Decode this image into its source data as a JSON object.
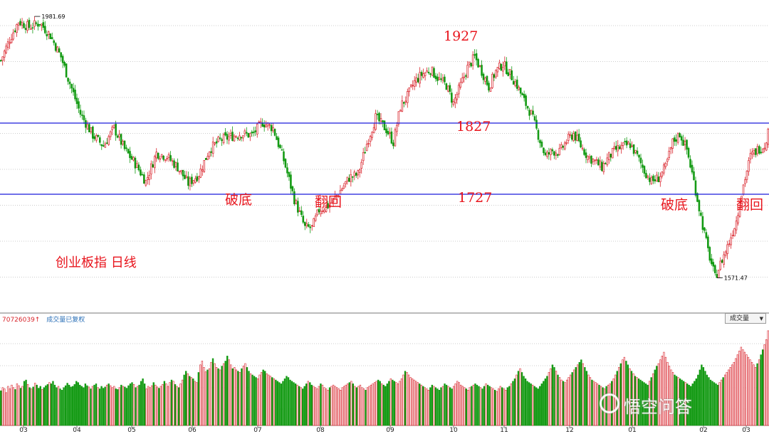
{
  "chart_data": {
    "type": "candlestick",
    "subtitle": "创业板指 日线",
    "x_ticks": [
      "03",
      "04",
      "05",
      "06",
      "07",
      "08",
      "09",
      "10",
      "11",
      "12",
      "01",
      "02",
      "03"
    ],
    "price_ylim": [
      1560,
      2000
    ],
    "high_label": "1981.69",
    "low_label": "1571.47",
    "levels": [
      {
        "value": 1827,
        "label": "1827",
        "color": "#1a1adb"
      },
      {
        "value": 1727,
        "label": "1727",
        "color": "#1a1adb"
      }
    ],
    "peak_label": "1927",
    "annotations": [
      "破底",
      "翻回",
      "破底",
      "翻回"
    ],
    "up_color": "#d9232b",
    "down_color": "#139a13",
    "anchors": [
      [
        0,
        1915
      ],
      [
        5,
        1945
      ],
      [
        10,
        1970
      ],
      [
        16,
        1962
      ],
      [
        22,
        1968
      ],
      [
        28,
        1950
      ],
      [
        34,
        1920
      ],
      [
        38,
        1890
      ],
      [
        45,
        1840
      ],
      [
        52,
        1810
      ],
      [
        58,
        1795
      ],
      [
        64,
        1820
      ],
      [
        70,
        1790
      ],
      [
        76,
        1770
      ],
      [
        82,
        1745
      ],
      [
        88,
        1785
      ],
      [
        94,
        1780
      ],
      [
        100,
        1765
      ],
      [
        106,
        1742
      ],
      [
        112,
        1755
      ],
      [
        118,
        1790
      ],
      [
        124,
        1803
      ],
      [
        130,
        1808
      ],
      [
        136,
        1812
      ],
      [
        142,
        1810
      ],
      [
        148,
        1828
      ],
      [
        154,
        1820
      ],
      [
        160,
        1775
      ],
      [
        166,
        1720
      ],
      [
        172,
        1680
      ],
      [
        176,
        1680
      ],
      [
        180,
        1705
      ],
      [
        186,
        1712
      ],
      [
        192,
        1732
      ],
      [
        197,
        1750
      ],
      [
        202,
        1755
      ],
      [
        207,
        1798
      ],
      [
        212,
        1835
      ],
      [
        218,
        1818
      ],
      [
        222,
        1800
      ],
      [
        226,
        1850
      ],
      [
        230,
        1865
      ],
      [
        234,
        1885
      ],
      [
        238,
        1895
      ],
      [
        243,
        1902
      ],
      [
        248,
        1888
      ],
      [
        252,
        1880
      ],
      [
        256,
        1855
      ],
      [
        260,
        1880
      ],
      [
        264,
        1905
      ],
      [
        268,
        1920
      ],
      [
        272,
        1900
      ],
      [
        276,
        1878
      ],
      [
        280,
        1900
      ],
      [
        284,
        1910
      ],
      [
        288,
        1896
      ],
      [
        292,
        1880
      ],
      [
        296,
        1858
      ],
      [
        300,
        1840
      ],
      [
        304,
        1810
      ],
      [
        308,
        1780
      ],
      [
        312,
        1788
      ],
      [
        316,
        1786
      ],
      [
        320,
        1802
      ],
      [
        324,
        1812
      ],
      [
        328,
        1795
      ],
      [
        332,
        1780
      ],
      [
        336,
        1773
      ],
      [
        340,
        1765
      ],
      [
        344,
        1780
      ],
      [
        348,
        1790
      ],
      [
        352,
        1794
      ],
      [
        356,
        1797
      ],
      [
        360,
        1780
      ],
      [
        364,
        1760
      ],
      [
        368,
        1745
      ],
      [
        372,
        1750
      ],
      [
        376,
        1765
      ],
      [
        380,
        1800
      ],
      [
        384,
        1812
      ],
      [
        388,
        1790
      ],
      [
        392,
        1745
      ],
      [
        396,
        1695
      ],
      [
        400,
        1648
      ],
      [
        404,
        1610
      ],
      [
        408,
        1635
      ],
      [
        412,
        1660
      ],
      [
        416,
        1690
      ],
      [
        420,
        1740
      ],
      [
        424,
        1780
      ],
      [
        428,
        1790
      ],
      [
        432,
        1796
      ],
      [
        434,
        1815
      ]
    ],
    "volume_ylim": [
      0,
      160
    ],
    "volume_values": [
      55,
      60,
      58,
      52,
      62,
      58,
      64,
      60,
      57,
      66,
      63,
      59,
      62,
      70,
      72,
      65,
      60,
      58,
      61,
      67,
      64,
      59,
      62,
      57,
      60,
      63,
      65,
      68,
      66,
      70,
      64,
      60,
      62,
      58,
      56,
      60,
      63,
      67,
      64,
      61,
      62,
      65,
      70,
      68,
      64,
      62,
      60,
      66,
      63,
      61,
      58,
      62,
      64,
      66,
      60,
      58,
      62,
      59,
      61,
      64,
      66,
      63,
      60,
      62,
      58,
      57,
      60,
      64,
      62,
      61,
      59,
      63,
      66,
      68,
      65,
      60,
      62,
      64,
      70,
      74,
      66,
      58,
      62,
      60,
      63,
      68,
      64,
      61,
      59,
      62,
      65,
      70,
      66,
      62,
      68,
      72,
      70,
      65,
      62,
      60,
      66,
      72,
      80,
      86,
      82,
      78,
      76,
      74,
      70,
      68,
      84,
      96,
      102,
      92,
      85,
      88,
      90,
      100,
      106,
      98,
      92,
      90,
      88,
      94,
      98,
      102,
      110,
      104,
      96,
      90,
      92,
      88,
      86,
      84,
      90,
      94,
      98,
      92,
      86,
      82,
      80,
      78,
      76,
      74,
      80,
      84,
      88,
      86,
      82,
      80,
      78,
      76,
      74,
      72,
      70,
      68,
      66,
      70,
      74,
      78,
      76,
      72,
      70,
      68,
      66,
      64,
      62,
      60,
      58,
      62,
      66,
      70,
      68,
      64,
      62,
      60,
      58,
      62,
      66,
      64,
      60,
      58,
      56,
      60,
      62,
      64,
      62,
      60,
      58,
      56,
      60,
      62,
      64,
      66,
      68,
      70,
      66,
      62,
      60,
      62,
      64,
      60,
      58,
      56,
      60,
      62,
      64,
      66,
      68,
      70,
      72,
      70,
      66,
      64,
      62,
      66,
      70,
      74,
      72,
      70,
      68,
      66,
      70,
      74,
      80,
      86,
      84,
      80,
      76,
      74,
      72,
      70,
      68,
      66,
      64,
      62,
      60,
      58,
      56,
      60,
      64,
      62,
      60,
      58,
      56,
      60,
      62,
      66,
      64,
      62,
      60,
      58,
      62,
      66,
      70,
      68,
      64,
      62,
      60,
      58,
      56,
      60,
      62,
      64,
      66,
      64,
      62,
      60,
      58,
      62,
      66,
      64,
      62,
      60,
      58,
      56,
      54,
      58,
      62,
      60,
      58,
      56,
      60,
      62,
      66,
      70,
      74,
      80,
      86,
      90,
      84,
      78,
      74,
      70,
      68,
      66,
      64,
      62,
      60,
      58,
      62,
      66,
      70,
      74,
      78,
      84,
      90,
      96,
      92,
      86,
      80,
      76,
      72,
      70,
      68,
      72,
      76,
      80,
      84,
      88,
      92,
      96,
      100,
      104,
      98,
      92,
      86,
      80,
      76,
      72,
      70,
      68,
      66,
      64,
      62,
      60,
      58,
      62,
      64,
      66,
      70,
      74,
      80,
      86,
      92,
      98,
      104,
      108,
      102,
      96,
      90,
      86,
      82,
      78,
      76,
      74,
      72,
      70,
      68,
      66,
      64,
      70,
      76,
      82,
      88,
      94,
      98,
      104,
      110,
      116,
      108,
      100,
      94,
      88,
      84,
      80,
      78,
      76,
      74,
      72,
      70,
      68,
      66,
      64,
      62,
      66,
      70,
      74,
      80,
      88,
      96,
      92,
      86,
      80,
      76,
      72,
      70,
      68,
      66,
      64,
      68,
      72,
      76,
      80,
      84,
      88,
      92,
      96,
      100,
      106,
      112,
      118,
      124,
      120,
      116,
      112,
      108,
      104,
      100,
      96,
      92,
      98,
      104,
      112,
      120,
      128,
      136,
      150
    ]
  },
  "volume_panel": {
    "header_value": "70726039↑",
    "header_label": "成交量已复权",
    "selector_label": "成交量"
  },
  "watermark": "悟空问答"
}
